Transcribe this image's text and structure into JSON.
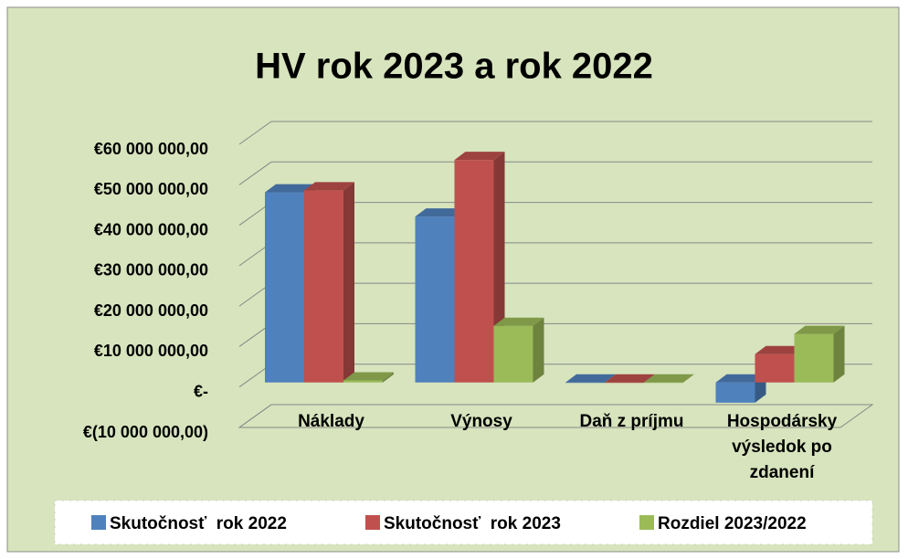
{
  "chart_data": {
    "type": "bar3d",
    "title": "HV rok 2023 a rok 2022",
    "categories": [
      "Náklady",
      "Výnosy",
      "Daň z príjmu",
      "Hospodársky výsledok po zdanení"
    ],
    "series": [
      {
        "name": "Skutočnosť  rok 2022",
        "color": "#4f81bd",
        "values": [
          47000000,
          41000000,
          0,
          -5000000
        ]
      },
      {
        "name": "Skutočnosť  rok 2023",
        "color": "#c0504d",
        "values": [
          47500000,
          55000000,
          0,
          7000000
        ]
      },
      {
        "name": "Rozdiel 2023/2022",
        "color": "#9bbb59",
        "values": [
          500000,
          14000000,
          0,
          12000000
        ]
      }
    ],
    "ylim": [
      -10000000,
      60000000
    ],
    "yticks": [
      {
        "value": -10000000,
        "label": "€(10 000 000,00)"
      },
      {
        "value": 0,
        "label": "€-"
      },
      {
        "value": 10000000,
        "label": "€10 000 000,00"
      },
      {
        "value": 20000000,
        "label": "€20 000 000,00"
      },
      {
        "value": 30000000,
        "label": "€30 000 000,00"
      },
      {
        "value": 40000000,
        "label": "€40 000 000,00"
      },
      {
        "value": 50000000,
        "label": "€50 000 000,00"
      },
      {
        "value": 60000000,
        "label": "€60 000 000,00"
      }
    ],
    "grid": true,
    "legend": "bottom"
  }
}
